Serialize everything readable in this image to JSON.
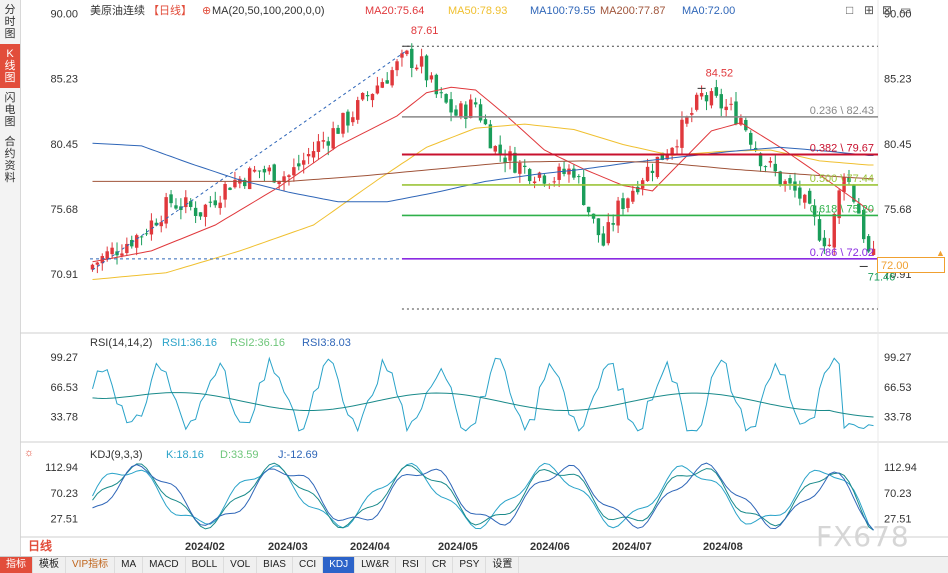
{
  "sidebar": {
    "tabs": [
      {
        "label": "分时图",
        "active": false
      },
      {
        "label": "K线图",
        "active": true
      },
      {
        "label": "闪电图",
        "active": false
      },
      {
        "label": "合约资料",
        "active": false
      }
    ]
  },
  "header": {
    "symbol": "美原油连续",
    "period": "【日线】",
    "ma_params": "MA(20,50,100,200,0,0)",
    "ma20": "MA20:75.64",
    "ma50": "MA50:78.93",
    "ma100": "MA100:79.55",
    "ma200": "MA200:77.87",
    "ma0": "MA0:72.00"
  },
  "rsi_header": {
    "params": "RSI(14,14,2)",
    "rsi1": "RSI1:36.16",
    "rsi2": "RSI2:36.16",
    "rsi3": "RSI3:8.03"
  },
  "kdj_header": {
    "params": "KDJ(9,3,3)",
    "k": "K:18.16",
    "d": "D:33.59",
    "j": "J:-12.69"
  },
  "price_tag": "72.00",
  "watermark": "FX678",
  "period_button": "日线",
  "bottom_tabs": [
    "指标",
    "模板",
    "VIP指标",
    "MA",
    "MACD",
    "BOLL",
    "VOL",
    "BIAS",
    "CCI",
    "KDJ",
    "LW&R",
    "RSI",
    "CR",
    "PSY",
    "设置"
  ],
  "colors": {
    "up": "#e0383c",
    "down": "#1a9d5a",
    "ma20": "#e0383c",
    "ma50": "#f0c030",
    "ma100": "#2f66b8",
    "ma200": "#a0543a",
    "accent": "#e24d3b"
  },
  "chart_data": [
    {
      "type": "candlestick",
      "title": "美原油连续【日线】",
      "y_ticks": [
        90.0,
        85.23,
        80.45,
        75.68,
        70.91
      ],
      "ylim": [
        69.0,
        91.0
      ],
      "x_ticks": [
        "2024/02",
        "2024/03",
        "2024/04",
        "2024/05",
        "2024/06",
        "2024/07",
        "2024/08"
      ],
      "annotations": [
        {
          "text": "87.61",
          "value": 87.61,
          "index": 64
        },
        {
          "text": "84.52",
          "value": 84.52,
          "index": 124
        },
        {
          "text": "71.46",
          "value": 71.46,
          "index": 157
        }
      ],
      "fibonacci": [
        {
          "label": "0.236 \\ 82.43",
          "value": 82.43,
          "color": "#888888"
        },
        {
          "label": "0.382 \\ 79.67",
          "value": 79.67,
          "color": "#c8102e"
        },
        {
          "label": "0.500 \\ 77.44",
          "value": 77.44,
          "color": "#9bc43a"
        },
        {
          "label": "0.618 \\ 75.20",
          "value": 75.2,
          "color": "#2fb04a"
        },
        {
          "label": "0.786 \\ 72.02",
          "value": 72.02,
          "color": "#8a2be2"
        }
      ],
      "series": [
        {
          "name": "MA20",
          "anchors": [
            [
              0,
              71.8
            ],
            [
              12,
              72.6
            ],
            [
              25,
              74.5
            ],
            [
              38,
              77.3
            ],
            [
              50,
              80.3
            ],
            [
              62,
              82.5
            ],
            [
              68,
              84.2
            ],
            [
              73,
              84.6
            ],
            [
              78,
              84.4
            ],
            [
              84,
              82.6
            ],
            [
              92,
              80.0
            ],
            [
              100,
              78.6
            ],
            [
              108,
              77.4
            ],
            [
              114,
              77.0
            ],
            [
              120,
              79.2
            ],
            [
              126,
              81.4
            ],
            [
              132,
              82.0
            ],
            [
              140,
              80.2
            ],
            [
              148,
              78.2
            ],
            [
              155,
              76.4
            ],
            [
              158,
              75.6
            ]
          ]
        },
        {
          "name": "MA50",
          "anchors": [
            [
              0,
              70.5
            ],
            [
              15,
              71.0
            ],
            [
              30,
              72.6
            ],
            [
              45,
              74.5
            ],
            [
              58,
              77.8
            ],
            [
              68,
              80.2
            ],
            [
              78,
              81.6
            ],
            [
              88,
              81.9
            ],
            [
              98,
              81.5
            ],
            [
              108,
              80.4
            ],
            [
              118,
              79.6
            ],
            [
              128,
              79.9
            ],
            [
              138,
              80.0
            ],
            [
              148,
              79.2
            ],
            [
              158,
              78.9
            ]
          ]
        },
        {
          "name": "MA100",
          "anchors": [
            [
              0,
              80.5
            ],
            [
              10,
              80.3
            ],
            [
              20,
              79.0
            ],
            [
              30,
              77.8
            ],
            [
              40,
              76.9
            ],
            [
              50,
              76.2
            ],
            [
              60,
              76.2
            ],
            [
              70,
              76.9
            ],
            [
              80,
              77.7
            ],
            [
              90,
              78.2
            ],
            [
              100,
              78.6
            ],
            [
              110,
              79.1
            ],
            [
              120,
              79.5
            ],
            [
              130,
              79.9
            ],
            [
              140,
              80.2
            ],
            [
              150,
              79.9
            ],
            [
              158,
              79.6
            ]
          ]
        },
        {
          "name": "MA200",
          "anchors": [
            [
              0,
              77.7
            ],
            [
              20,
              77.7
            ],
            [
              40,
              77.7
            ],
            [
              55,
              78.1
            ],
            [
              70,
              78.6
            ],
            [
              85,
              79.1
            ],
            [
              100,
              79.2
            ],
            [
              115,
              79.1
            ],
            [
              130,
              78.6
            ],
            [
              145,
              78.2
            ],
            [
              158,
              77.9
            ]
          ]
        }
      ]
    },
    {
      "type": "line",
      "title": "RSI(14,14,2)",
      "y_ticks": [
        99.27,
        66.53,
        33.78
      ],
      "series": [
        {
          "name": "RSI1",
          "values": "oscillating series"
        },
        {
          "name": "RSI3",
          "values": "oscillating series"
        }
      ]
    },
    {
      "type": "line",
      "title": "KDJ(9,3,3)",
      "y_ticks": [
        112.94,
        70.23,
        27.51
      ],
      "series": [
        {
          "name": "K"
        },
        {
          "name": "D"
        },
        {
          "name": "J"
        }
      ]
    }
  ]
}
